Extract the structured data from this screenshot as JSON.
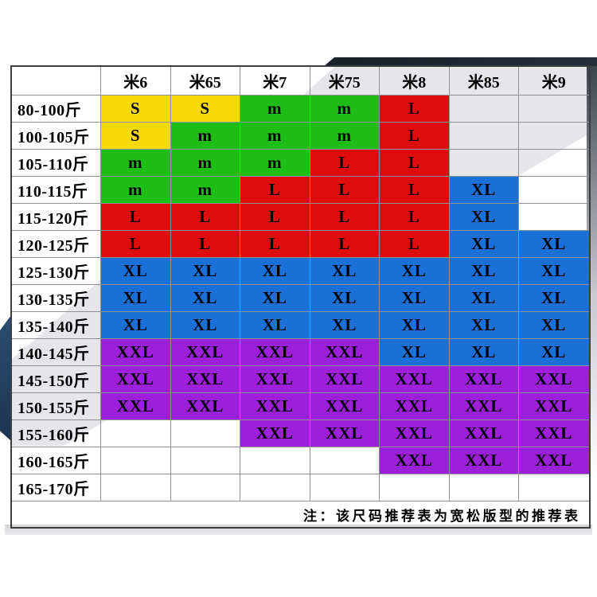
{
  "chart_data": {
    "type": "table",
    "description_note": "注：该尺码推荐表为宽松版型的推荐表",
    "corner_label": "",
    "columns": [
      "米6",
      "米65",
      "米7",
      "米75",
      "米8",
      "米85",
      "米9"
    ],
    "rows": [
      {
        "label": "80-100斤",
        "cells": [
          [
            "S",
            "yellow"
          ],
          [
            "S",
            "yellow"
          ],
          [
            "m",
            "green"
          ],
          [
            "m",
            "green"
          ],
          [
            "L",
            "red"
          ],
          null,
          null
        ]
      },
      {
        "label": "100-105斤",
        "cells": [
          [
            "S",
            "yellow"
          ],
          [
            "m",
            "green"
          ],
          [
            "m",
            "green"
          ],
          [
            "m",
            "green"
          ],
          [
            "L",
            "red"
          ],
          null,
          null
        ]
      },
      {
        "label": "105-110斤",
        "cells": [
          [
            "m",
            "green"
          ],
          [
            "m",
            "green"
          ],
          [
            "m",
            "green"
          ],
          [
            "L",
            "red"
          ],
          [
            "L",
            "red"
          ],
          null,
          null
        ]
      },
      {
        "label": "110-115斤",
        "cells": [
          [
            "m",
            "green"
          ],
          [
            "m",
            "green"
          ],
          [
            "L",
            "red"
          ],
          [
            "L",
            "red"
          ],
          [
            "L",
            "red"
          ],
          [
            "XL",
            "blue"
          ],
          null
        ]
      },
      {
        "label": "115-120斤",
        "cells": [
          [
            "L",
            "red"
          ],
          [
            "L",
            "red"
          ],
          [
            "L",
            "red"
          ],
          [
            "L",
            "red"
          ],
          [
            "L",
            "red"
          ],
          [
            "XL",
            "blue"
          ],
          null
        ]
      },
      {
        "label": "120-125斤",
        "cells": [
          [
            "L",
            "red"
          ],
          [
            "L",
            "red"
          ],
          [
            "L",
            "red"
          ],
          [
            "L",
            "red"
          ],
          [
            "L",
            "red"
          ],
          [
            "XL",
            "blue"
          ],
          [
            "XL",
            "blue"
          ]
        ]
      },
      {
        "label": "125-130斤",
        "cells": [
          [
            "XL",
            "blue"
          ],
          [
            "XL",
            "blue"
          ],
          [
            "XL",
            "blue"
          ],
          [
            "XL",
            "blue"
          ],
          [
            "XL",
            "blue"
          ],
          [
            "XL",
            "blue"
          ],
          [
            "XL",
            "blue"
          ]
        ]
      },
      {
        "label": "130-135斤",
        "cells": [
          [
            "XL",
            "blue"
          ],
          [
            "XL",
            "blue"
          ],
          [
            "XL",
            "blue"
          ],
          [
            "XL",
            "blue"
          ],
          [
            "XL",
            "blue"
          ],
          [
            "XL",
            "blue"
          ],
          [
            "XL",
            "blue"
          ]
        ]
      },
      {
        "label": "135-140斤",
        "cells": [
          [
            "XL",
            "blue"
          ],
          [
            "XL",
            "blue"
          ],
          [
            "XL",
            "blue"
          ],
          [
            "XL",
            "blue"
          ],
          [
            "XL",
            "blue"
          ],
          [
            "XL",
            "blue"
          ],
          [
            "XL",
            "blue"
          ]
        ]
      },
      {
        "label": "140-145斤",
        "cells": [
          [
            "XXL",
            "purple"
          ],
          [
            "XXL",
            "purple"
          ],
          [
            "XXL",
            "purple"
          ],
          [
            "XXL",
            "purple"
          ],
          [
            "XL",
            "blue"
          ],
          [
            "XL",
            "blue"
          ],
          [
            "XL",
            "blue"
          ]
        ]
      },
      {
        "label": "145-150斤",
        "cells": [
          [
            "XXL",
            "purple"
          ],
          [
            "XXL",
            "purple"
          ],
          [
            "XXL",
            "purple"
          ],
          [
            "XXL",
            "purple"
          ],
          [
            "XXL",
            "purple"
          ],
          [
            "XXL",
            "purple"
          ],
          [
            "XXL",
            "purple"
          ]
        ]
      },
      {
        "label": "150-155斤",
        "cells": [
          [
            "XXL",
            "purple"
          ],
          [
            "XXL",
            "purple"
          ],
          [
            "XXL",
            "purple"
          ],
          [
            "XXL",
            "purple"
          ],
          [
            "XXL",
            "purple"
          ],
          [
            "XXL",
            "purple"
          ],
          [
            "XXL",
            "purple"
          ]
        ]
      },
      {
        "label": "155-160斤",
        "cells": [
          null,
          null,
          [
            "XXL",
            "purple"
          ],
          [
            "XXL",
            "purple"
          ],
          [
            "XXL",
            "purple"
          ],
          [
            "XXL",
            "purple"
          ],
          [
            "XXL",
            "purple"
          ]
        ]
      },
      {
        "label": "160-165斤",
        "cells": [
          null,
          null,
          null,
          null,
          [
            "XXL",
            "purple"
          ],
          [
            "XXL",
            "purple"
          ],
          [
            "XXL",
            "purple"
          ]
        ]
      },
      {
        "label": "165-170斤",
        "cells": [
          null,
          null,
          null,
          null,
          null,
          null,
          null
        ]
      }
    ],
    "size_colors": {
      "yellow": "#f6d908",
      "green": "#1fbe17",
      "red": "#df0c0c",
      "blue": "#1a70d6",
      "purple": "#9c1fd9"
    },
    "decor_colors": {
      "navy": "#1a212b",
      "navyleft": "#22405e",
      "ribbon": "#e6e6ea",
      "band": "#d6d6da"
    },
    "legend_position": "none",
    "grid": true
  }
}
